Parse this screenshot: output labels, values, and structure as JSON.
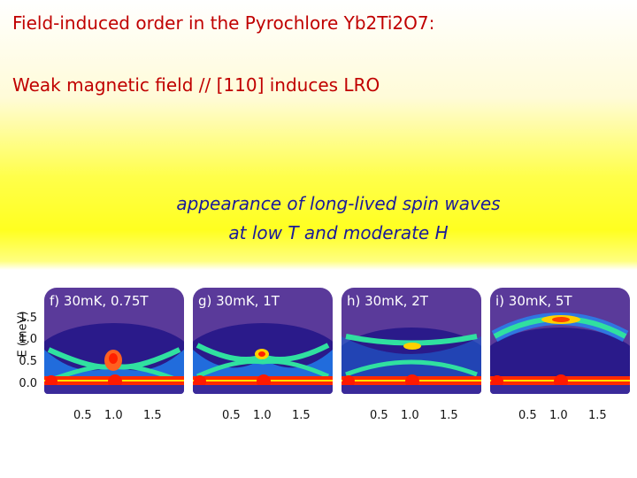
{
  "slide": {
    "title": "Field-induced order in the Pyrochlore Yb2Ti2O7:",
    "subtitle": "Weak magnetic field // [110] induces LRO",
    "note_line1": "appearance of long-lived spin waves",
    "note_line2": "at low T and moderate H"
  },
  "figure": {
    "ylabel": "E (meV)",
    "yticks": [
      "1.5",
      "1.0",
      "0.5",
      "0.0"
    ],
    "panels": [
      {
        "label": "f) 30mK, 0.75T",
        "xticks": [
          "0.5",
          "1.0",
          "1.5"
        ]
      },
      {
        "label": "g) 30mK, 1T",
        "xticks": [
          "0.5",
          "1.0",
          "1.5"
        ]
      },
      {
        "label": "h) 30mK, 2T",
        "xticks": [
          "0.5",
          "1.0",
          "1.5"
        ]
      },
      {
        "label": "i) 30mK, 5T",
        "xticks": [
          "0.5",
          "1.0",
          "1.5"
        ]
      }
    ],
    "colors": {
      "background": "#2a1a8a",
      "elastic_line": "#ff2a00",
      "dispersion": "#30e0a0",
      "hot": "#ffd000"
    }
  }
}
